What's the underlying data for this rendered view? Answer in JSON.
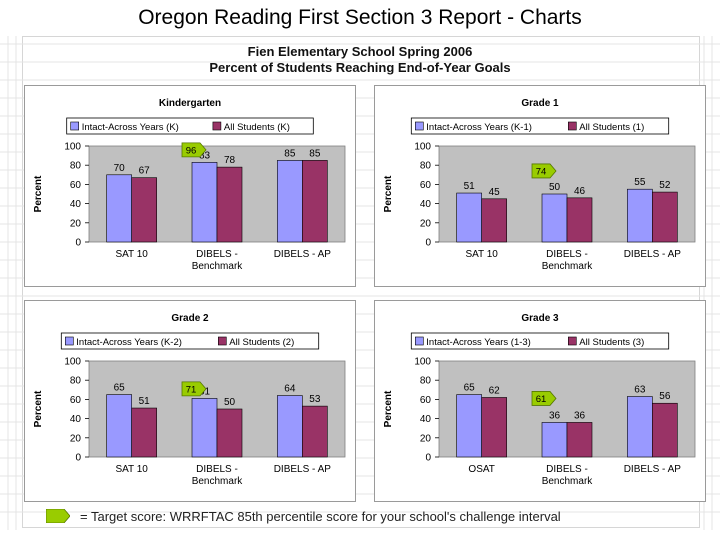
{
  "slide_title": "Oregon Reading First Section 3 Report - Charts",
  "report": {
    "school_line": "Fien Elementary School Spring 2006",
    "subtitle_line": "Percent of Students Reaching End-of-Year Goals"
  },
  "footnote": "= Target score: WRRFTAC 85th percentile score for your school's challenge interval",
  "colors": {
    "intact": "#9999ff",
    "all": "#993366",
    "plot_bg": "#c0c0c0",
    "target": "#99cc00"
  },
  "chart_data": [
    {
      "type": "bar",
      "title": "Kindergarten",
      "legend": [
        "Intact-Across Years (K)",
        "All Students (K)"
      ],
      "ylabel": "Percent",
      "ylim": [
        0,
        100
      ],
      "yticks": [
        "0",
        "20",
        "40",
        "60",
        "80",
        "100"
      ],
      "categories": [
        [
          "SAT 10"
        ],
        [
          "DIBELS -",
          "Benchmark"
        ],
        [
          "DIBELS - AP"
        ]
      ],
      "series": [
        {
          "name": "Intact-Across Years (K)",
          "values": [
            70,
            83,
            85
          ]
        },
        {
          "name": "All Students (K)",
          "values": [
            67,
            78,
            85
          ]
        }
      ],
      "target": {
        "category_index": 1,
        "value": 96,
        "label": "96"
      }
    },
    {
      "type": "bar",
      "title": "Grade 1",
      "legend": [
        "Intact-Across Years (K-1)",
        "All Students (1)"
      ],
      "ylabel": "Percent",
      "ylim": [
        0,
        100
      ],
      "yticks": [
        "0",
        "20",
        "40",
        "60",
        "80",
        "100"
      ],
      "categories": [
        [
          "SAT 10"
        ],
        [
          "DIBELS -",
          "Benchmark"
        ],
        [
          "DIBELS - AP"
        ]
      ],
      "series": [
        {
          "name": "Intact-Across Years (K-1)",
          "values": [
            51,
            50,
            55
          ]
        },
        {
          "name": "All Students (1)",
          "values": [
            45,
            46,
            52
          ]
        }
      ],
      "target": {
        "category_index": 1,
        "value": 74,
        "label": "74"
      }
    },
    {
      "type": "bar",
      "title": "Grade 2",
      "legend": [
        "Intact-Across Years (K-2)",
        "All Students (2)"
      ],
      "ylabel": "Percent",
      "ylim": [
        0,
        100
      ],
      "yticks": [
        "0",
        "20",
        "40",
        "60",
        "80",
        "100"
      ],
      "categories": [
        [
          "SAT 10"
        ],
        [
          "DIBELS -",
          "Benchmark"
        ],
        [
          "DIBELS - AP"
        ]
      ],
      "series": [
        {
          "name": "Intact-Across Years (K-2)",
          "values": [
            65,
            61,
            64
          ]
        },
        {
          "name": "All Students (2)",
          "values": [
            51,
            50,
            53
          ]
        }
      ],
      "target": {
        "category_index": 1,
        "value": 71,
        "label": "71"
      }
    },
    {
      "type": "bar",
      "title": "Grade 3",
      "legend": [
        "Intact-Across Years (1-3)",
        "All Students (3)"
      ],
      "ylabel": "Percent",
      "ylim": [
        0,
        100
      ],
      "yticks": [
        "0",
        "20",
        "40",
        "60",
        "80",
        "100"
      ],
      "categories": [
        [
          "OSAT"
        ],
        [
          "DIBELS -",
          "Benchmark"
        ],
        [
          "DIBELS - AP"
        ]
      ],
      "series": [
        {
          "name": "Intact-Across Years (1-3)",
          "values": [
            65,
            36,
            63
          ]
        },
        {
          "name": "All Students (3)",
          "values": [
            62,
            36,
            56
          ]
        }
      ],
      "target": {
        "category_index": 1,
        "value": 61,
        "label": "61"
      }
    }
  ]
}
